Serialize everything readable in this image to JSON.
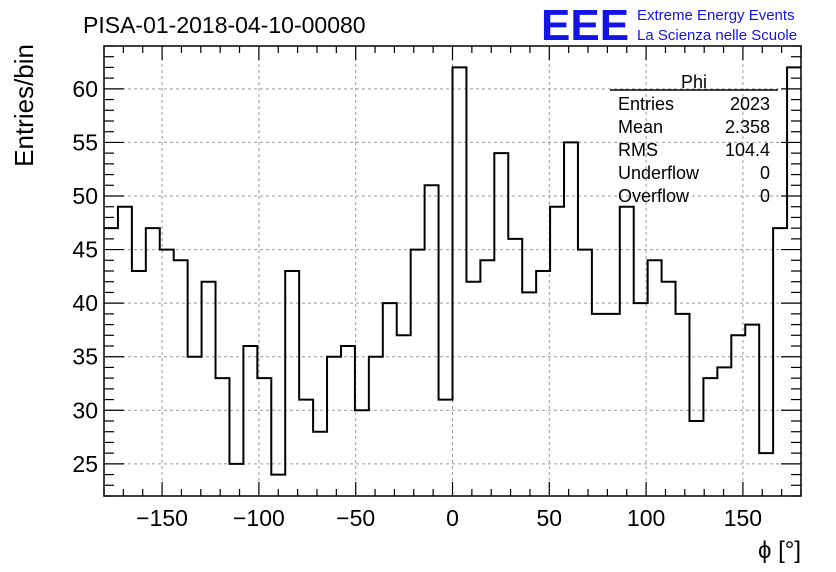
{
  "chart_data": {
    "type": "bar",
    "style": "step-histogram",
    "title": "PISA-01-2018-04-10-00080",
    "xlabel": "ϕ [°]",
    "ylabel": "Entries/bin",
    "xlim": [
      -180,
      180
    ],
    "ylim": [
      22,
      64
    ],
    "xticks": [
      -150,
      -100,
      -50,
      0,
      50,
      100,
      150
    ],
    "yticks": [
      25,
      30,
      35,
      40,
      45,
      50,
      55,
      60
    ],
    "xtick_labels": [
      "−150",
      "−100",
      "−50",
      "0",
      "50",
      "100",
      "150"
    ],
    "ytick_labels": [
      "25",
      "30",
      "35",
      "40",
      "45",
      "50",
      "55",
      "60"
    ],
    "grid": true,
    "bin_width": 7.2,
    "x_start": -180,
    "values": [
      47,
      49,
      43,
      47,
      45,
      44,
      35,
      42,
      33,
      25,
      36,
      33,
      24,
      43,
      31,
      28,
      35,
      36,
      30,
      35,
      40,
      37,
      45,
      51,
      31,
      62,
      42,
      44,
      54,
      46,
      41,
      43,
      49,
      55,
      45,
      39,
      39,
      49,
      40,
      44,
      42,
      39,
      29,
      33,
      34,
      37,
      38,
      26,
      47,
      62
    ],
    "stats": {
      "name": "Phi",
      "rows": [
        {
          "label": "Entries",
          "value": "2023"
        },
        {
          "label": "Mean",
          "value": "2.358"
        },
        {
          "label": "RMS",
          "value": "104.4"
        },
        {
          "label": "Underflow",
          "value": "0"
        },
        {
          "label": "Overflow",
          "value": "0"
        }
      ]
    }
  },
  "logo": {
    "mark": "EEE",
    "line1": "Extreme Energy Events",
    "line2": "La Scienza nelle Scuole",
    "color": "#1414e6"
  }
}
